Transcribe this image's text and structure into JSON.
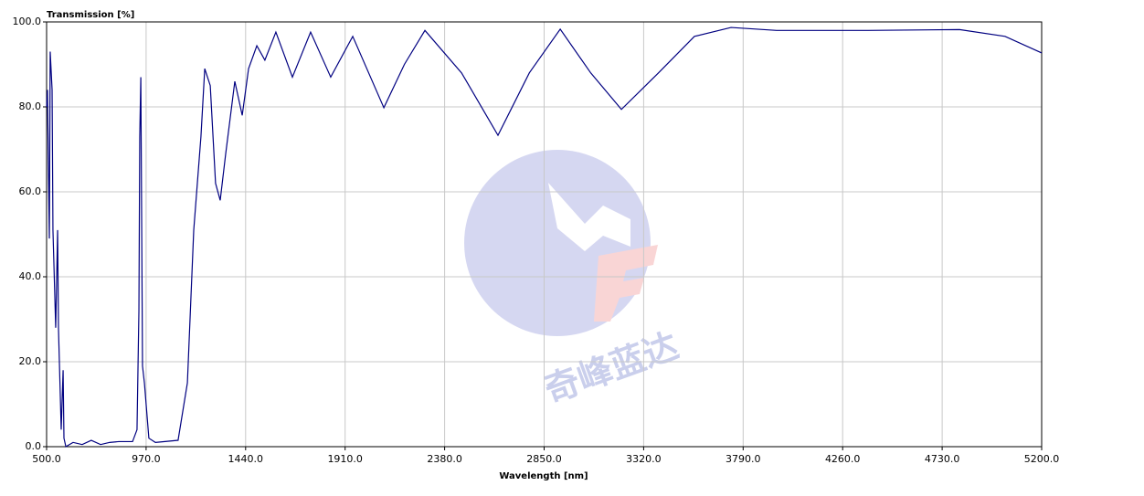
{
  "chart_data": {
    "type": "line",
    "title": "Transmission [%]",
    "x_label": "Wavelength [nm]",
    "watermark": "奇峰蓝达",
    "x": [
      500,
      504,
      513,
      517,
      526,
      530,
      543,
      552,
      556,
      569,
      578,
      582,
      591,
      625,
      668,
      711,
      755,
      798,
      841,
      906,
      927,
      936,
      940,
      945,
      953,
      962,
      983,
      1014,
      1121,
      1165,
      1195,
      1229,
      1247,
      1273,
      1298,
      1320,
      1346,
      1389,
      1424,
      1454,
      1493,
      1531,
      1583,
      1661,
      1747,
      1842,
      1946,
      2093,
      2190,
      2287,
      2460,
      2632,
      2780,
      2926,
      3070,
      3215,
      3390,
      3560,
      3733,
      3948,
      4380,
      4812,
      5027,
      5200
    ],
    "series": [
      {
        "name": "Transmission",
        "color": "#000080",
        "values": [
          80,
          84,
          49,
          93,
          84,
          51,
          28,
          51,
          28,
          4,
          18,
          2,
          0,
          1,
          0.5,
          1.5,
          0.5,
          1,
          1.2,
          1.2,
          4,
          32,
          73,
          87,
          19,
          15,
          2,
          1,
          1.5,
          15,
          51,
          73,
          89,
          85,
          62,
          58,
          69,
          86,
          78,
          89,
          94.4,
          91,
          97.6,
          87,
          97.6,
          87,
          96.6,
          79.8,
          90,
          98,
          88,
          73.3,
          88,
          98.3,
          88,
          79.4,
          88,
          96.6,
          98.7,
          98,
          98,
          98.2,
          96.6,
          92.7
        ]
      }
    ],
    "xlim": [
      500,
      5200
    ],
    "xticks": [
      {
        "value": 500,
        "label": "500.0"
      },
      {
        "value": 970,
        "label": "970.0"
      },
      {
        "value": 1440,
        "label": "1440.0"
      },
      {
        "value": 1910,
        "label": "1910.0"
      },
      {
        "value": 2380,
        "label": "2380.0"
      },
      {
        "value": 2850,
        "label": "2850.0"
      },
      {
        "value": 3320,
        "label": "3320.0"
      },
      {
        "value": 3790,
        "label": "3790.0"
      },
      {
        "value": 4260,
        "label": "4260.0"
      },
      {
        "value": 4730,
        "label": "4730.0"
      },
      {
        "value": 5200,
        "label": "5200.0"
      }
    ],
    "ylim": [
      0,
      100
    ],
    "yticks": [
      {
        "value": 0,
        "label": "0.0"
      },
      {
        "value": 20,
        "label": "20.0"
      },
      {
        "value": 40,
        "label": "40.0"
      },
      {
        "value": 60,
        "label": "60.0"
      },
      {
        "value": 80,
        "label": "80.0"
      },
      {
        "value": 100,
        "label": "100.0"
      }
    ],
    "grid": true
  }
}
